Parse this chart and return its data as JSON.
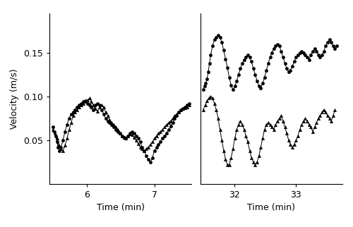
{
  "left_panel": {
    "xlabel": "Time (min)",
    "xlim": [
      5.45,
      7.55
    ],
    "xticks": [
      6,
      7
    ],
    "title": ""
  },
  "right_panel": {
    "xlabel": "Time (min)",
    "xlim": [
      31.45,
      33.75
    ],
    "xticks": [
      32,
      33
    ],
    "title": ""
  },
  "ylabel": "Velocity (m/s)",
  "ylim": [
    0.0,
    0.195
  ],
  "yticks": [
    0.05,
    0.1,
    0.15
  ],
  "background_color": "white",
  "left_circles_x": [
    5.5,
    5.52,
    5.54,
    5.56,
    5.58,
    5.6,
    5.62,
    5.65,
    5.68,
    5.71,
    5.74,
    5.77,
    5.8,
    5.83,
    5.86,
    5.89,
    5.92,
    5.95,
    5.98,
    6.01,
    6.04,
    6.07,
    6.1,
    6.13,
    6.16,
    6.19,
    6.22,
    6.25,
    6.28,
    6.31,
    6.34,
    6.37,
    6.4,
    6.43,
    6.46,
    6.49,
    6.52,
    6.55,
    6.58,
    6.61,
    6.64,
    6.67,
    6.7,
    6.73,
    6.76,
    6.79,
    6.82,
    6.85,
    6.88,
    6.91,
    6.94,
    6.97,
    7.0,
    7.03,
    7.06,
    7.09,
    7.12,
    7.15,
    7.18,
    7.21,
    7.24,
    7.27,
    7.3,
    7.33,
    7.36,
    7.39,
    7.42,
    7.45,
    7.48,
    7.51
  ],
  "left_circles_y": [
    0.065,
    0.06,
    0.055,
    0.048,
    0.042,
    0.038,
    0.042,
    0.05,
    0.06,
    0.068,
    0.075,
    0.08,
    0.082,
    0.085,
    0.088,
    0.09,
    0.092,
    0.094,
    0.095,
    0.092,
    0.09,
    0.088,
    0.085,
    0.09,
    0.092,
    0.09,
    0.085,
    0.08,
    0.075,
    0.072,
    0.07,
    0.068,
    0.065,
    0.062,
    0.06,
    0.058,
    0.055,
    0.053,
    0.052,
    0.055,
    0.058,
    0.06,
    0.058,
    0.055,
    0.052,
    0.048,
    0.042,
    0.038,
    0.032,
    0.028,
    0.025,
    0.03,
    0.038,
    0.042,
    0.045,
    0.048,
    0.052,
    0.055,
    0.058,
    0.062,
    0.066,
    0.07,
    0.075,
    0.078,
    0.082,
    0.085,
    0.086,
    0.088,
    0.09,
    0.092
  ],
  "left_triangles_x": [
    5.5,
    5.53,
    5.56,
    5.59,
    5.62,
    5.65,
    5.68,
    5.71,
    5.74,
    5.77,
    5.8,
    5.83,
    5.86,
    5.89,
    5.92,
    5.95,
    5.98,
    6.01,
    6.04,
    6.07,
    6.1,
    6.13,
    6.16,
    6.19,
    6.22,
    6.25,
    6.28,
    6.31,
    6.34,
    6.37,
    6.4,
    6.43,
    6.46,
    6.49,
    6.52,
    6.55,
    6.58,
    6.61,
    6.64,
    6.67,
    6.7,
    6.73,
    6.76,
    6.79,
    6.82,
    6.85,
    6.88,
    6.91,
    6.94,
    6.97,
    7.0,
    7.03,
    7.06,
    7.09,
    7.12,
    7.15,
    7.18,
    7.21,
    7.24,
    7.27,
    7.3,
    7.33,
    7.36,
    7.39,
    7.42,
    7.45,
    7.48,
    7.51
  ],
  "left_triangles_y": [
    0.062,
    0.058,
    0.052,
    0.045,
    0.04,
    0.038,
    0.044,
    0.052,
    0.062,
    0.07,
    0.078,
    0.082,
    0.085,
    0.088,
    0.09,
    0.092,
    0.094,
    0.096,
    0.098,
    0.094,
    0.09,
    0.086,
    0.083,
    0.088,
    0.09,
    0.088,
    0.082,
    0.078,
    0.073,
    0.07,
    0.068,
    0.065,
    0.062,
    0.058,
    0.055,
    0.053,
    0.052,
    0.055,
    0.057,
    0.056,
    0.053,
    0.05,
    0.046,
    0.042,
    0.04,
    0.038,
    0.04,
    0.042,
    0.045,
    0.048,
    0.052,
    0.055,
    0.058,
    0.06,
    0.062,
    0.065,
    0.068,
    0.07,
    0.072,
    0.075,
    0.078,
    0.08,
    0.082,
    0.085,
    0.086,
    0.087,
    0.088,
    0.09
  ],
  "right_circles_x": [
    31.5,
    31.52,
    31.54,
    31.56,
    31.58,
    31.6,
    31.62,
    31.65,
    31.68,
    31.71,
    31.74,
    31.77,
    31.8,
    31.83,
    31.86,
    31.89,
    31.92,
    31.95,
    31.98,
    32.01,
    32.04,
    32.07,
    32.1,
    32.13,
    32.16,
    32.19,
    32.22,
    32.25,
    32.28,
    32.31,
    32.34,
    32.37,
    32.4,
    32.43,
    32.46,
    32.49,
    32.52,
    32.55,
    32.58,
    32.61,
    32.64,
    32.67,
    32.7,
    32.73,
    32.76,
    32.79,
    32.82,
    32.85,
    32.88,
    32.91,
    32.94,
    32.97,
    33.0,
    33.03,
    33.06,
    33.09,
    33.12,
    33.15,
    33.18,
    33.21,
    33.24,
    33.27,
    33.3,
    33.33,
    33.36,
    33.39,
    33.42,
    33.45,
    33.48,
    33.51,
    33.54,
    33.57,
    33.6,
    33.63,
    33.66
  ],
  "right_circles_y": [
    0.108,
    0.112,
    0.115,
    0.12,
    0.128,
    0.138,
    0.148,
    0.158,
    0.165,
    0.168,
    0.17,
    0.168,
    0.162,
    0.153,
    0.143,
    0.133,
    0.122,
    0.113,
    0.108,
    0.112,
    0.118,
    0.125,
    0.132,
    0.138,
    0.142,
    0.145,
    0.148,
    0.145,
    0.14,
    0.132,
    0.125,
    0.118,
    0.112,
    0.11,
    0.115,
    0.122,
    0.13,
    0.138,
    0.145,
    0.15,
    0.155,
    0.158,
    0.16,
    0.158,
    0.152,
    0.145,
    0.138,
    0.132,
    0.128,
    0.13,
    0.135,
    0.14,
    0.145,
    0.148,
    0.15,
    0.152,
    0.15,
    0.148,
    0.145,
    0.142,
    0.148,
    0.152,
    0.155,
    0.152,
    0.148,
    0.145,
    0.148,
    0.152,
    0.158,
    0.162,
    0.165,
    0.162,
    0.158,
    0.155,
    0.158
  ],
  "right_triangles_x": [
    31.5,
    31.53,
    31.56,
    31.59,
    31.62,
    31.65,
    31.68,
    31.71,
    31.74,
    31.77,
    31.8,
    31.83,
    31.86,
    31.89,
    31.92,
    31.95,
    31.98,
    32.01,
    32.04,
    32.07,
    32.1,
    32.13,
    32.16,
    32.19,
    32.22,
    32.25,
    32.28,
    32.31,
    32.34,
    32.37,
    32.4,
    32.43,
    32.46,
    32.49,
    32.52,
    32.55,
    32.58,
    32.61,
    32.64,
    32.67,
    32.7,
    32.73,
    32.76,
    32.79,
    32.82,
    32.85,
    32.88,
    32.91,
    32.94,
    32.97,
    33.0,
    33.03,
    33.06,
    33.09,
    33.12,
    33.15,
    33.18,
    33.21,
    33.24,
    33.27,
    33.3,
    33.33,
    33.36,
    33.39,
    33.42,
    33.45,
    33.48,
    33.51,
    33.54,
    33.57,
    33.6,
    33.63
  ],
  "right_triangles_y": [
    0.085,
    0.09,
    0.095,
    0.098,
    0.1,
    0.098,
    0.092,
    0.085,
    0.075,
    0.062,
    0.05,
    0.038,
    0.028,
    0.022,
    0.022,
    0.03,
    0.04,
    0.052,
    0.062,
    0.068,
    0.072,
    0.068,
    0.062,
    0.055,
    0.048,
    0.038,
    0.03,
    0.025,
    0.022,
    0.025,
    0.032,
    0.042,
    0.052,
    0.062,
    0.068,
    0.07,
    0.068,
    0.065,
    0.062,
    0.068,
    0.072,
    0.075,
    0.078,
    0.072,
    0.065,
    0.058,
    0.05,
    0.045,
    0.042,
    0.045,
    0.05,
    0.055,
    0.062,
    0.068,
    0.072,
    0.075,
    0.072,
    0.068,
    0.065,
    0.06,
    0.065,
    0.07,
    0.075,
    0.078,
    0.082,
    0.085,
    0.082,
    0.078,
    0.075,
    0.072,
    0.078,
    0.085
  ]
}
